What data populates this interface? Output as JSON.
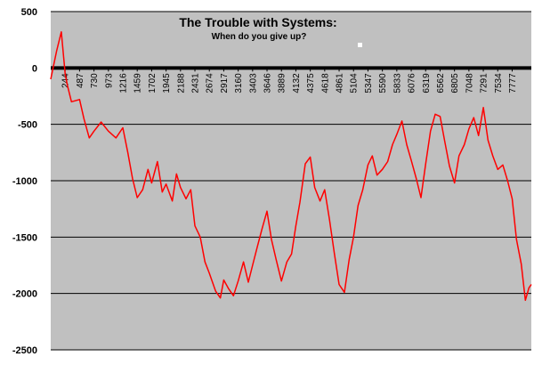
{
  "chart_data": {
    "type": "line",
    "title": "The Trouble with Systems:",
    "subtitle": "When do you give up?",
    "xlabel": "",
    "ylabel": "",
    "ylim": [
      -2500,
      500
    ],
    "xlim": [
      1,
      8100
    ],
    "grid": true,
    "legend": "none",
    "colors": {
      "plot_bg": "#c0c0c0",
      "line": "#ff0000",
      "grid": "#000000",
      "zero_line": "#000000"
    },
    "ytick_labels": [
      "500",
      "0",
      "-500",
      "-1000",
      "-1500",
      "-2000",
      "-2500"
    ],
    "xtick_labels": [
      "244",
      "487",
      "730",
      "973",
      "1216",
      "1459",
      "1702",
      "1945",
      "2188",
      "2431",
      "2674",
      "2917",
      "3160",
      "3403",
      "3646",
      "3889",
      "4132",
      "4375",
      "4618",
      "4861",
      "5104",
      "5347",
      "5590",
      "5833",
      "6076",
      "6319",
      "6562",
      "6805",
      "7048",
      "7291",
      "7534",
      "7777"
    ],
    "series": [
      {
        "x": [
          1,
          100,
          180,
          244,
          280,
          350,
          487,
          560,
          650,
          730,
          850,
          973,
          1100,
          1216,
          1300,
          1380,
          1459,
          1550,
          1640,
          1702,
          1800,
          1880,
          1945,
          2050,
          2120,
          2188,
          2280,
          2360,
          2431,
          2520,
          2600,
          2674,
          2780,
          2860,
          2917,
          3000,
          3080,
          3160,
          3250,
          3330,
          3403,
          3480,
          3560,
          3646,
          3720,
          3800,
          3889,
          3980,
          4060,
          4132,
          4200,
          4290,
          4375,
          4450,
          4540,
          4618,
          4700,
          4780,
          4861,
          4950,
          5030,
          5104,
          5180,
          5260,
          5347,
          5420,
          5500,
          5590,
          5680,
          5760,
          5833,
          5920,
          6000,
          6076,
          6160,
          6240,
          6319,
          6400,
          6480,
          6562,
          6640,
          6720,
          6805,
          6880,
          6970,
          7048,
          7130,
          7210,
          7291,
          7370,
          7450,
          7534,
          7620,
          7700,
          7777,
          7850,
          7930,
          8000,
          8060,
          8100
        ],
        "y": [
          -100,
          150,
          320,
          -50,
          -150,
          -300,
          -280,
          -450,
          -620,
          -560,
          -480,
          -560,
          -620,
          -530,
          -750,
          -980,
          -1150,
          -1080,
          -900,
          -1020,
          -830,
          -1100,
          -1030,
          -1180,
          -940,
          -1060,
          -1160,
          -1080,
          -1400,
          -1500,
          -1720,
          -1820,
          -1980,
          -2040,
          -1880,
          -1960,
          -2020,
          -1890,
          -1720,
          -1900,
          -1750,
          -1590,
          -1430,
          -1270,
          -1520,
          -1700,
          -1890,
          -1720,
          -1650,
          -1400,
          -1190,
          -850,
          -790,
          -1060,
          -1180,
          -1080,
          -1350,
          -1640,
          -1920,
          -1990,
          -1700,
          -1500,
          -1220,
          -1080,
          -860,
          -780,
          -950,
          -900,
          -830,
          -680,
          -590,
          -470,
          -680,
          -820,
          -980,
          -1150,
          -850,
          -560,
          -410,
          -430,
          -650,
          -870,
          -1020,
          -780,
          -680,
          -540,
          -440,
          -600,
          -350,
          -640,
          -780,
          -900,
          -860,
          -1000,
          -1160,
          -1520,
          -1740,
          -2060,
          -1950,
          -1920
        ]
      }
    ]
  }
}
